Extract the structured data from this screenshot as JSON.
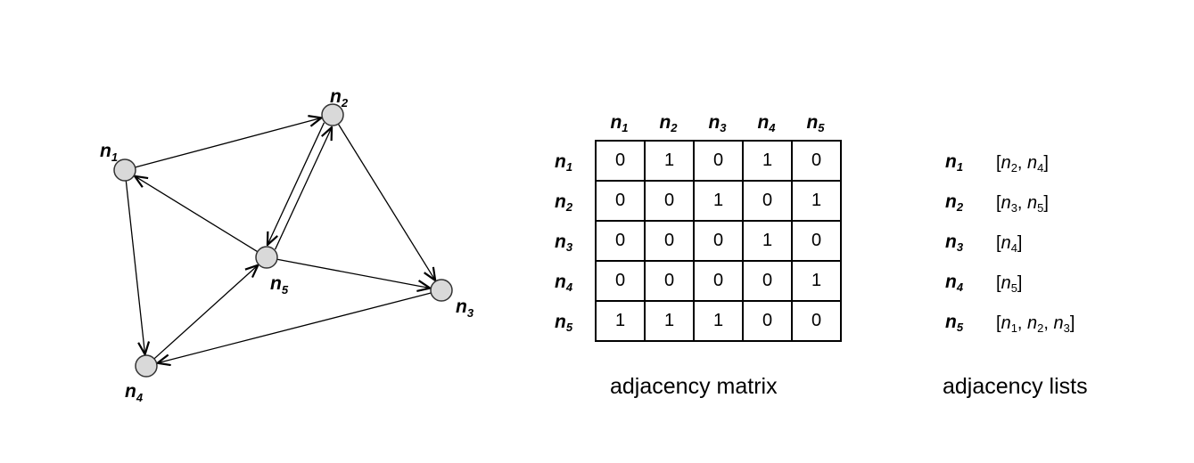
{
  "graph": {
    "nodes": [
      {
        "id": "n1",
        "base": "n",
        "sub": "1"
      },
      {
        "id": "n2",
        "base": "n",
        "sub": "2"
      },
      {
        "id": "n3",
        "base": "n",
        "sub": "3"
      },
      {
        "id": "n4",
        "base": "n",
        "sub": "4"
      },
      {
        "id": "n5",
        "base": "n",
        "sub": "5"
      }
    ],
    "edges": [
      {
        "from": "n1",
        "to": "n2"
      },
      {
        "from": "n1",
        "to": "n4"
      },
      {
        "from": "n2",
        "to": "n3"
      },
      {
        "from": "n2",
        "to": "n5"
      },
      {
        "from": "n3",
        "to": "n4"
      },
      {
        "from": "n4",
        "to": "n5"
      },
      {
        "from": "n5",
        "to": "n1"
      },
      {
        "from": "n5",
        "to": "n2"
      },
      {
        "from": "n5",
        "to": "n3"
      }
    ]
  },
  "matrix": {
    "headers": [
      {
        "base": "n",
        "sub": "1"
      },
      {
        "base": "n",
        "sub": "2"
      },
      {
        "base": "n",
        "sub": "3"
      },
      {
        "base": "n",
        "sub": "4"
      },
      {
        "base": "n",
        "sub": "5"
      }
    ],
    "rows": [
      [
        "0",
        "1",
        "0",
        "1",
        "0"
      ],
      [
        "0",
        "0",
        "1",
        "0",
        "1"
      ],
      [
        "0",
        "0",
        "0",
        "1",
        "0"
      ],
      [
        "0",
        "0",
        "0",
        "0",
        "1"
      ],
      [
        "1",
        "1",
        "1",
        "0",
        "0"
      ]
    ],
    "caption": "adjacency matrix"
  },
  "lists": {
    "items": [
      {
        "base": "n",
        "sub": "1",
        "neighbors": [
          {
            "base": "n",
            "sub": "2"
          },
          {
            "base": "n",
            "sub": "4"
          }
        ]
      },
      {
        "base": "n",
        "sub": "2",
        "neighbors": [
          {
            "base": "n",
            "sub": "3"
          },
          {
            "base": "n",
            "sub": "5"
          }
        ]
      },
      {
        "base": "n",
        "sub": "3",
        "neighbors": [
          {
            "base": "n",
            "sub": "4"
          }
        ]
      },
      {
        "base": "n",
        "sub": "4",
        "neighbors": [
          {
            "base": "n",
            "sub": "5"
          }
        ]
      },
      {
        "base": "n",
        "sub": "5",
        "neighbors": [
          {
            "base": "n",
            "sub": "1"
          },
          {
            "base": "n",
            "sub": "2"
          },
          {
            "base": "n",
            "sub": "3"
          }
        ]
      }
    ],
    "caption": "adjacency lists"
  }
}
